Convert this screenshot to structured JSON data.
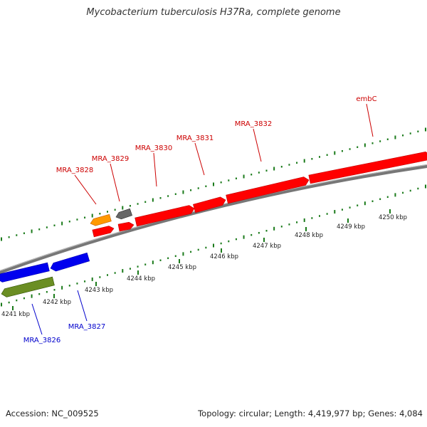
{
  "title": "Mycobacterium tuberculosis H37Ra, complete genome",
  "footer": {
    "accession": "Accession: NC_009525",
    "summary": "Topology: circular; Length: 4,419,977 bp; Genes: 4,084"
  },
  "colors": {
    "forward_label": "#cc0000",
    "reverse_label": "#0000cc",
    "forward_gene": "#ff0000",
    "reverse_gene": "#0000ee",
    "orange_feature": "#ff9900",
    "gray_feature": "#666666",
    "olive_feature": "#6b8e23",
    "backbone": "#888888",
    "tick": "#1a7a1a"
  },
  "kbp_ticks": [
    {
      "position_kbp": 4241,
      "label": "4241 kbp"
    },
    {
      "position_kbp": 4242,
      "label": "4242 kbp"
    },
    {
      "position_kbp": 4243,
      "label": "4243 kbp"
    },
    {
      "position_kbp": 4244,
      "label": "4244 kbp"
    },
    {
      "position_kbp": 4245,
      "label": "4245 kbp"
    },
    {
      "position_kbp": 4246,
      "label": "4246 kbp"
    },
    {
      "position_kbp": 4247,
      "label": "4247 kbp"
    },
    {
      "position_kbp": 4248,
      "label": "4248 kbp"
    },
    {
      "position_kbp": 4249,
      "label": "4249 kbp"
    },
    {
      "position_kbp": 4250,
      "label": "4250 kbp"
    }
  ],
  "forward_labels": [
    "MRA_3828",
    "MRA_3829",
    "MRA_3830",
    "MRA_3831",
    "MRA_3832",
    "embC"
  ],
  "reverse_labels": [
    "MRA_3826",
    "MRA_3827"
  ]
}
